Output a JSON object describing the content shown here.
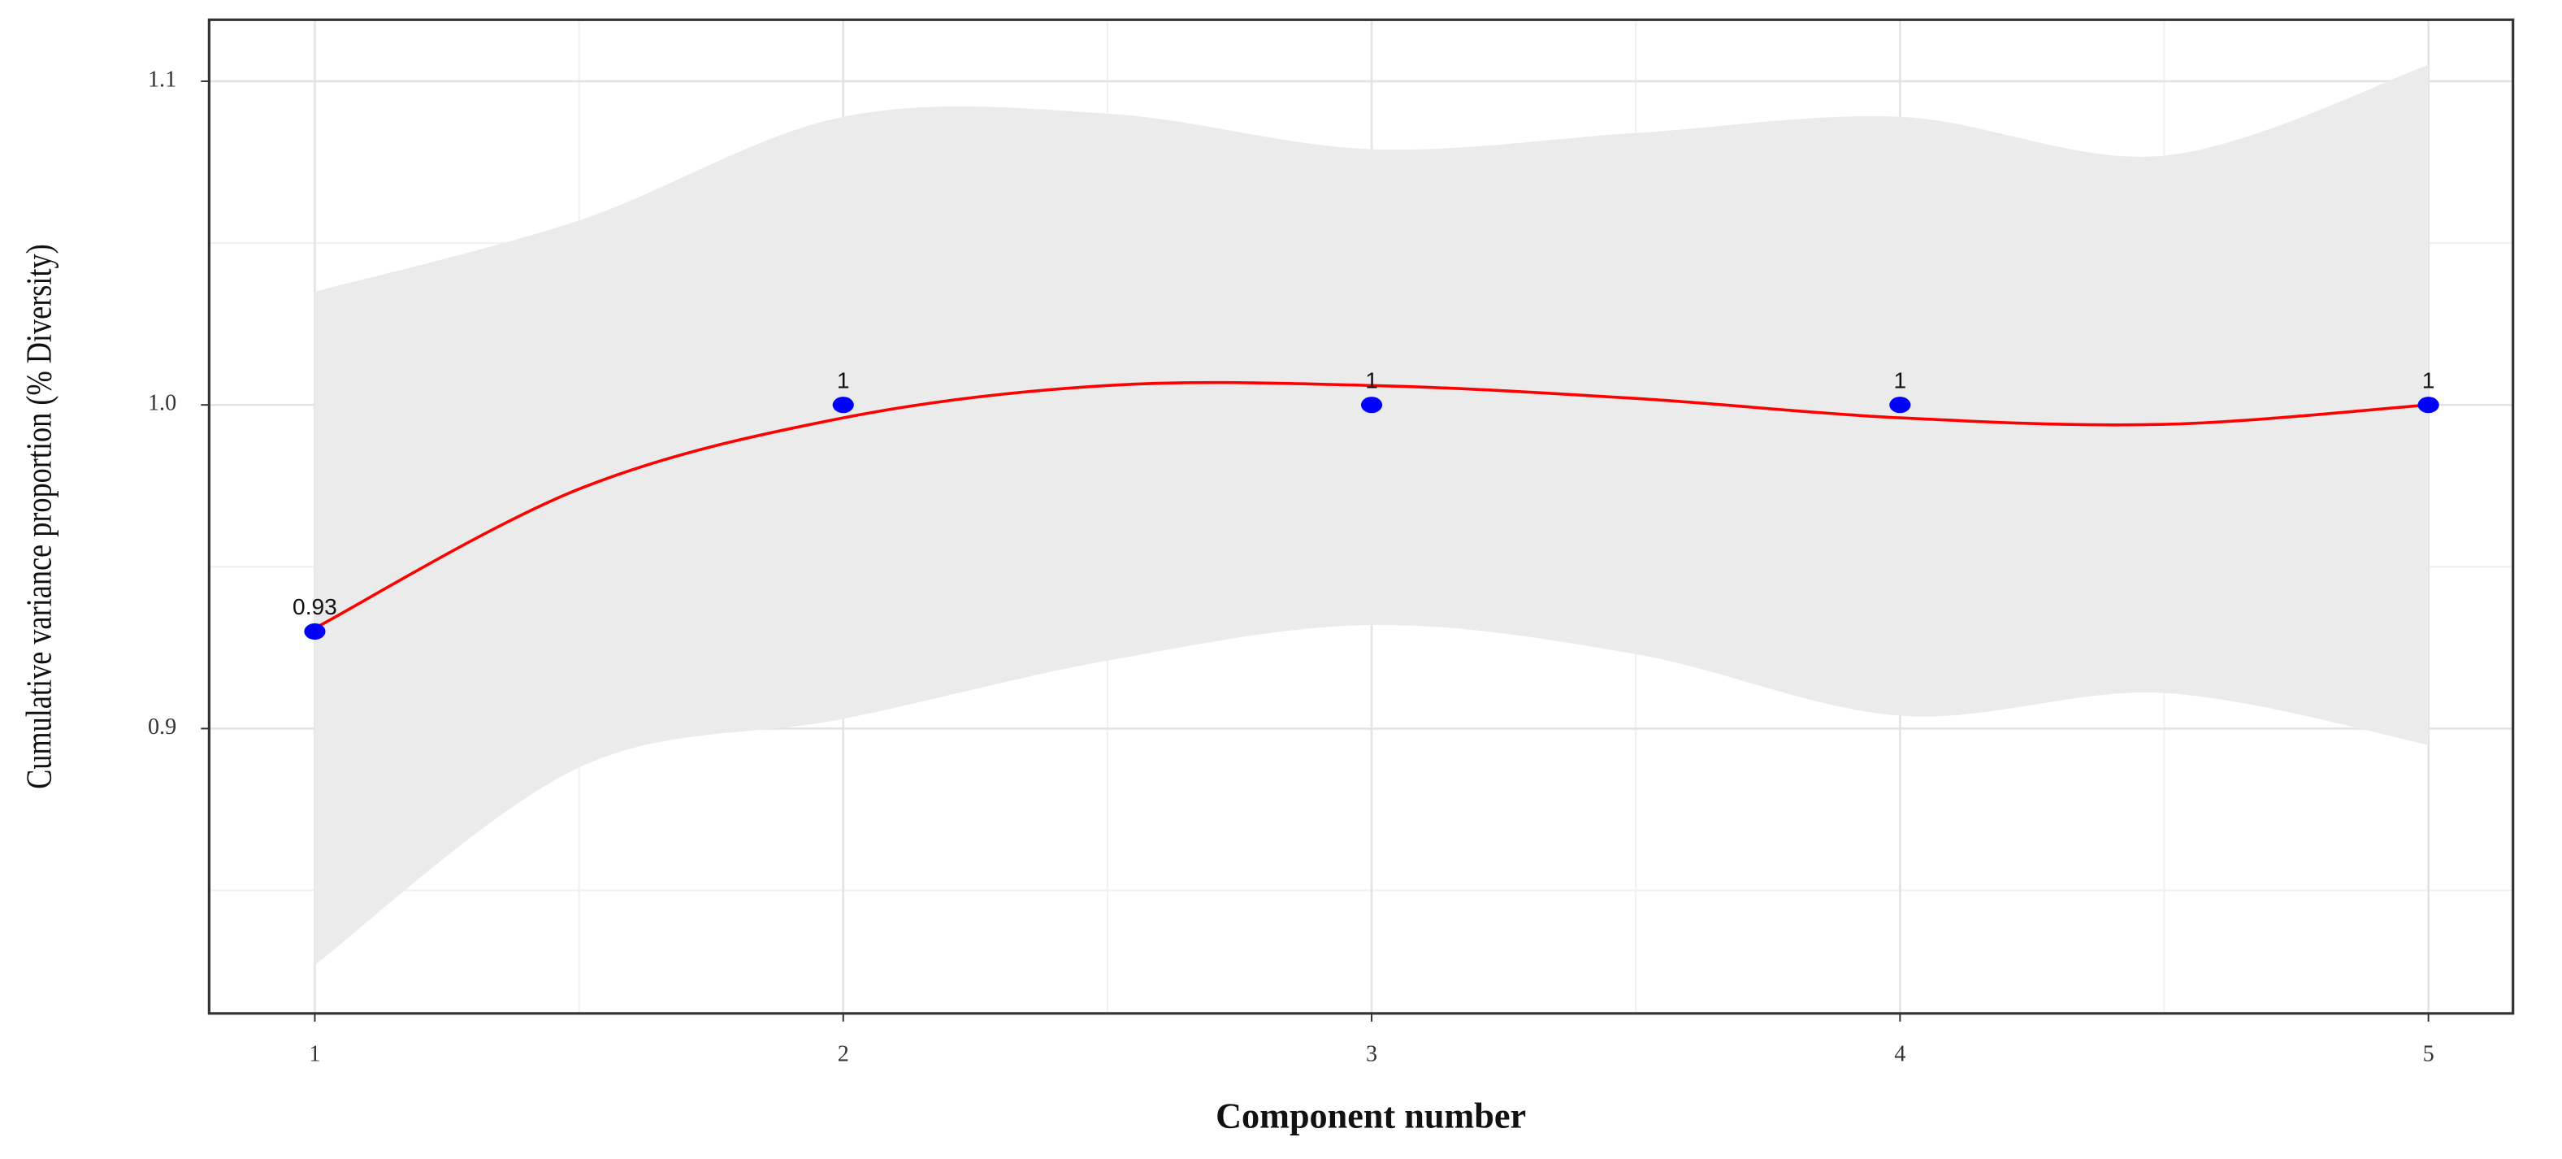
{
  "chart_data": {
    "type": "scatter",
    "x": [
      1,
      2,
      3,
      4,
      5
    ],
    "values": [
      0.93,
      1,
      1,
      1,
      1
    ],
    "color": "#0000ff",
    "smooth": {
      "x": [
        1,
        1.5,
        2,
        2.5,
        3,
        3.5,
        4,
        4.5,
        5
      ],
      "values": [
        0.931,
        0.974,
        0.996,
        1.006,
        1.006,
        1.002,
        0.996,
        0.994,
        1.0
      ],
      "lower": [
        0.827,
        0.888,
        0.903,
        0.921,
        0.932,
        0.923,
        0.904,
        0.911,
        0.895
      ],
      "upper": [
        1.035,
        1.057,
        1.089,
        1.09,
        1.079,
        1.084,
        1.089,
        1.077,
        1.105
      ],
      "color": "#ff0000",
      "band_color": "#ebebeb"
    },
    "xlabel": "Component number",
    "ylabel": "Cumulative variance proportion (% Diversity)",
    "xlim": [
      0.8,
      5.16
    ],
    "ylim": [
      0.812,
      1.119
    ],
    "xticks": [
      1,
      2,
      3,
      4,
      5
    ],
    "yticks": [
      0.9,
      {
        "value": 1.0,
        "label": "1.0"
      },
      1.1
    ],
    "grid": true,
    "minor_grid": true
  }
}
